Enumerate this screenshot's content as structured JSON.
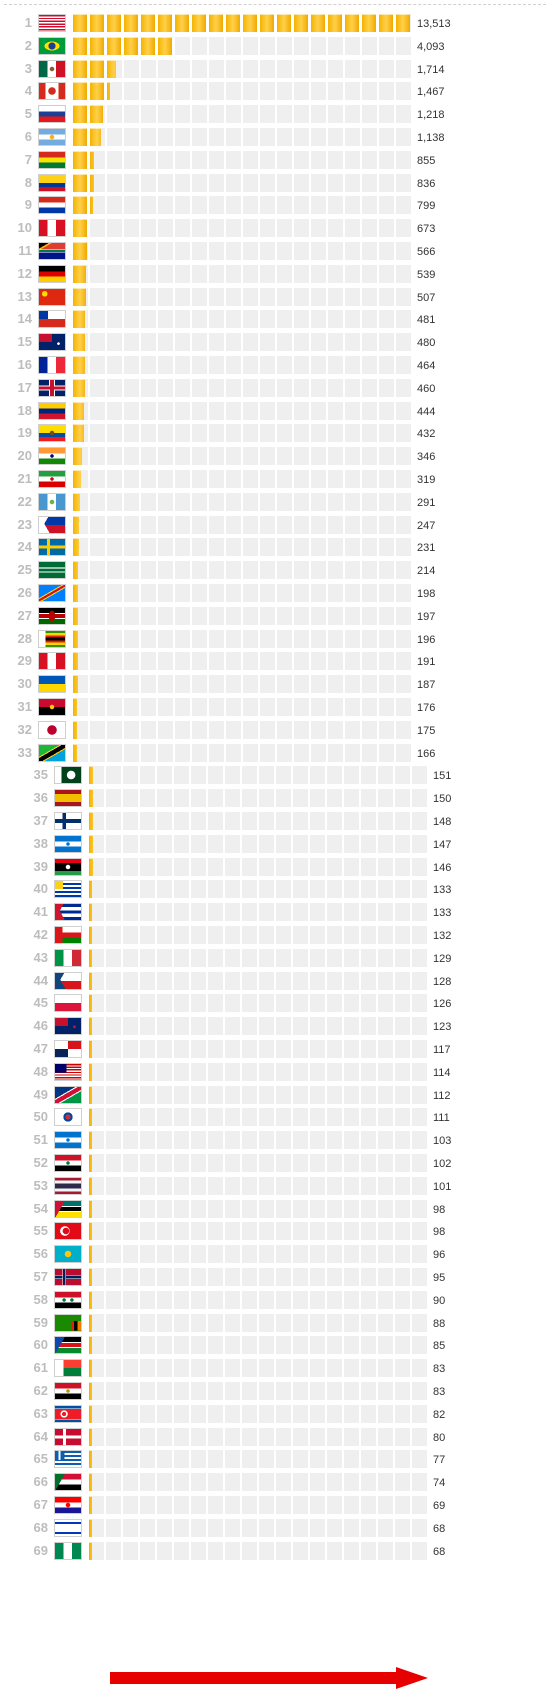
{
  "colors": {
    "bar_fill": "#f5b400",
    "track": "#efefef",
    "rank_text": "#bdbdbd",
    "value_text": "#333333",
    "arrow": "#e60000"
  },
  "chart_data": {
    "type": "bar",
    "orientation": "horizontal",
    "title": "",
    "xlabel": "",
    "ylabel": "",
    "xlim": [
      0,
      13513
    ],
    "grid": false,
    "legend": "none",
    "categories": [
      "1",
      "2",
      "3",
      "4",
      "5",
      "6",
      "7",
      "8",
      "9",
      "10",
      "11",
      "12",
      "13",
      "14",
      "15",
      "16",
      "17",
      "18",
      "19",
      "20",
      "21",
      "22",
      "23",
      "24",
      "25",
      "26",
      "27",
      "28",
      "29",
      "30",
      "31",
      "32",
      "33",
      "35",
      "36",
      "37",
      "38",
      "39",
      "40",
      "41",
      "42",
      "43",
      "44",
      "45",
      "46",
      "47",
      "48",
      "49",
      "50",
      "51",
      "52",
      "53",
      "54",
      "55",
      "56",
      "57",
      "58",
      "59",
      "60",
      "61",
      "62",
      "63",
      "64",
      "65",
      "66",
      "67",
      "68",
      "69"
    ],
    "flag_icons": [
      "united-states-flag",
      "brazil-flag",
      "mexico-flag",
      "canada-flag",
      "russia-flag",
      "argentina-flag",
      "bolivia-flag",
      "colombia-flag",
      "paraguay-flag",
      "peru-flag",
      "south-africa-flag",
      "germany-flag",
      "china-flag",
      "chile-flag",
      "australia-flag",
      "france-flag",
      "united-kingdom-flag",
      "venezuela-flag",
      "ecuador-flag",
      "india-flag",
      "iran-flag",
      "guatemala-flag",
      "philippines-flag",
      "sweden-flag",
      "saudi-arabia-flag",
      "dr-congo-flag",
      "kenya-flag",
      "zimbabwe-flag",
      "peru-flag",
      "ukraine-flag",
      "angola-flag",
      "japan-flag",
      "tanzania-flag",
      "pakistan-flag",
      "spain-flag",
      "finland-flag",
      "honduras-flag",
      "libya-flag",
      "uruguay-flag",
      "cuba-flag",
      "oman-flag",
      "italy-flag",
      "czech-republic-flag",
      "poland-flag",
      "new-zealand-flag",
      "panama-flag",
      "malaysia-flag",
      "namibia-flag",
      "south-korea-flag",
      "honduras-flag",
      "iraq-flag",
      "thailand-flag",
      "mozambique-flag",
      "turkey-flag",
      "kazakhstan-flag",
      "norway-flag",
      "syria-flag",
      "zambia-flag",
      "south-sudan-flag",
      "madagascar-flag",
      "egypt-flag",
      "north-korea-flag",
      "denmark-flag",
      "greece-flag",
      "sudan-flag",
      "croatia-flag",
      "israel-flag",
      "nigeria-flag"
    ],
    "values": [
      13513,
      4093,
      1714,
      1467,
      1218,
      1138,
      855,
      836,
      799,
      673,
      566,
      539,
      507,
      481,
      480,
      464,
      460,
      444,
      432,
      346,
      319,
      291,
      247,
      231,
      214,
      198,
      197,
      196,
      191,
      187,
      176,
      175,
      166,
      151,
      150,
      148,
      147,
      146,
      133,
      133,
      132,
      129,
      128,
      126,
      123,
      117,
      114,
      112,
      111,
      103,
      102,
      101,
      98,
      98,
      96,
      95,
      90,
      88,
      85,
      83,
      83,
      82,
      80,
      77,
      74,
      69,
      68,
      68
    ],
    "value_labels": [
      "13,513",
      "4,093",
      "1,714",
      "1,467",
      "1,218",
      "1,138",
      "855",
      "836",
      "799",
      "673",
      "566",
      "539",
      "507",
      "481",
      "480",
      "464",
      "460",
      "444",
      "432",
      "346",
      "319",
      "291",
      "247",
      "231",
      "214",
      "198",
      "197",
      "196",
      "191",
      "187",
      "176",
      "175",
      "166",
      "151",
      "150",
      "148",
      "147",
      "146",
      "133",
      "133",
      "132",
      "129",
      "128",
      "126",
      "123",
      "117",
      "114",
      "112",
      "111",
      "103",
      "102",
      "101",
      "98",
      "98",
      "96",
      "95",
      "90",
      "88",
      "85",
      "83",
      "83",
      "82",
      "80",
      "77",
      "74",
      "69",
      "68",
      "68"
    ],
    "annotations": [
      {
        "type": "arrow",
        "color": "#e60000",
        "points_to_rank": "69",
        "direction": "right"
      }
    ]
  }
}
